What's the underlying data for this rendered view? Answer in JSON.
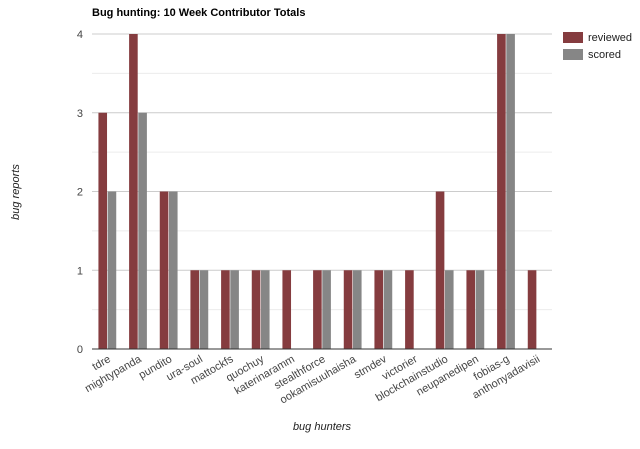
{
  "chart_data": {
    "type": "bar",
    "title": "Bug hunting: 10 Week Contributor Totals",
    "xlabel": "bug hunters",
    "ylabel": "bug reports",
    "ylim": [
      0,
      4
    ],
    "yticks": [
      0,
      1,
      2,
      3,
      4
    ],
    "grid": true,
    "legend_position": "top-right",
    "categories": [
      "tdre",
      "mightypanda",
      "pundito",
      "ura-soul",
      "mattockfs",
      "quochuy",
      "katerinaramm",
      "stealthforce",
      "ookamisuuhaisha",
      "stmdev",
      "victorier",
      "blockchainstudio",
      "neupanedipen",
      "fobias-g",
      "anthonyadavisii"
    ],
    "series": [
      {
        "name": "reviewed",
        "color": "#853c3f",
        "values": [
          3,
          4,
          2,
          1,
          1,
          1,
          1,
          1,
          1,
          1,
          1,
          2,
          1,
          4,
          1
        ]
      },
      {
        "name": "scored",
        "color": "#868686",
        "values": [
          2,
          3,
          2,
          1,
          1,
          1,
          0,
          1,
          1,
          1,
          0,
          1,
          1,
          4,
          0
        ]
      }
    ]
  }
}
